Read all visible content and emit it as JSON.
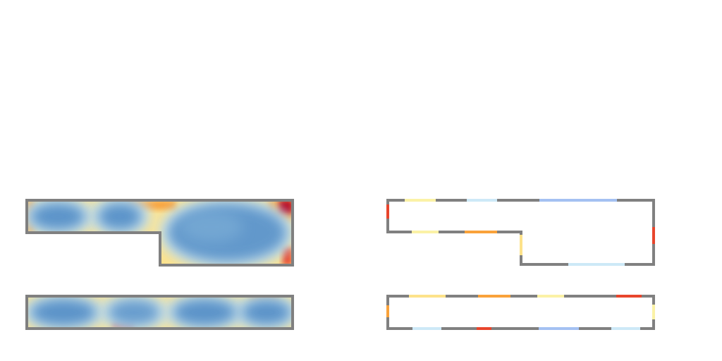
{
  "colors": {
    "wall": "#808080",
    "background": "#ffffff",
    "cold": "#4f8ac4",
    "cool": "#7fb0d8",
    "pale": "#cfe8f3",
    "light_yellow": "#fbf2a6",
    "yellow": "#fde28a",
    "orange": "#f9a23a",
    "red": "#e8452c",
    "dark_red": "#b5001f",
    "light_blue": "#cde9f7",
    "periwinkle": "#a4c1f2"
  },
  "palette_order": [
    "dark_red",
    "red",
    "orange",
    "yellow",
    "light_yellow",
    "pale",
    "cool",
    "cold"
  ],
  "panels": [
    {
      "name": "heatmap-panel",
      "view": "heatmap",
      "rooms": [
        {
          "name": "upper-room",
          "blobs": [
            {
              "color": "cold",
              "level": 0.9
            },
            {
              "color": "cold",
              "level": 0.9
            },
            {
              "color": "cold",
              "level": 0.85
            }
          ]
        },
        {
          "name": "lower-room",
          "blobs": [
            {
              "color": "cold",
              "level": 0.9
            },
            {
              "color": "cold",
              "level": 0.8
            },
            {
              "color": "cold",
              "level": 0.9
            },
            {
              "color": "cold",
              "level": 0.9
            }
          ]
        }
      ]
    },
    {
      "name": "boundary-panel",
      "view": "boundary",
      "rooms": [
        {
          "name": "upper-room"
        },
        {
          "name": "lower-room"
        }
      ]
    }
  ],
  "boundary_segments": {
    "upper-room": [
      {
        "side": "top",
        "color": "light_yellow"
      },
      {
        "side": "top",
        "color": "light_blue"
      },
      {
        "side": "top",
        "color": "periwinkle"
      },
      {
        "side": "left",
        "color": "red"
      },
      {
        "side": "inner-bottom",
        "color": "light_yellow"
      },
      {
        "side": "inner-bottom",
        "color": "orange"
      },
      {
        "side": "step",
        "color": "yellow"
      },
      {
        "side": "bottom",
        "color": "light_blue"
      },
      {
        "side": "right",
        "color": "red"
      }
    ],
    "lower-room": [
      {
        "side": "top",
        "color": "yellow"
      },
      {
        "side": "top",
        "color": "orange"
      },
      {
        "side": "top",
        "color": "light_yellow"
      },
      {
        "side": "top",
        "color": "red"
      },
      {
        "side": "left",
        "color": "orange"
      },
      {
        "side": "right",
        "color": "light_yellow"
      },
      {
        "side": "bottom",
        "color": "light_blue"
      },
      {
        "side": "bottom",
        "color": "red"
      },
      {
        "side": "bottom",
        "color": "periwinkle"
      },
      {
        "side": "bottom",
        "color": "light_blue"
      }
    ]
  }
}
